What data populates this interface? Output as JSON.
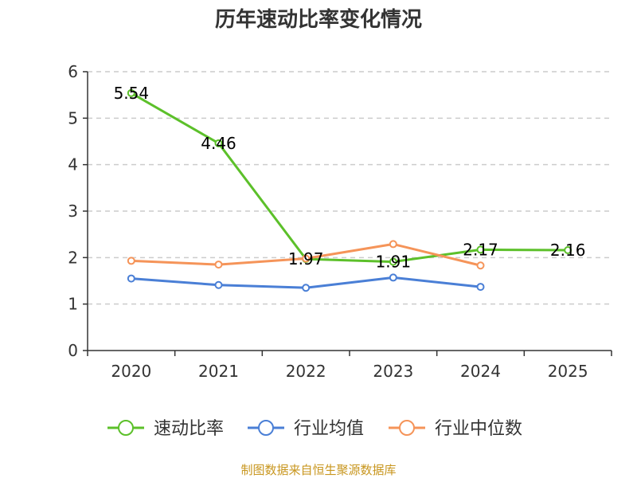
{
  "chart_data": {
    "type": "line",
    "title": "历年速动比率变化情况",
    "categories": [
      "2020",
      "2021",
      "2022",
      "2023",
      "2024",
      "2025"
    ],
    "ylim": [
      0,
      6
    ],
    "yticks": [
      0,
      1,
      2,
      3,
      4,
      5,
      6
    ],
    "grid": true,
    "legend_position": "bottom",
    "series": [
      {
        "name": "速动比率",
        "color": "#5cc02a",
        "values": [
          5.54,
          4.46,
          1.97,
          1.91,
          2.17,
          2.16
        ],
        "labels": [
          "5.54",
          "4.46",
          "1.97",
          "1.91",
          "2.17",
          "2.16"
        ]
      },
      {
        "name": "行业均值",
        "color": "#4a7fd6",
        "values": [
          1.55,
          1.41,
          1.35,
          1.57,
          1.37,
          null
        ]
      },
      {
        "name": "行业中位数",
        "color": "#f59459",
        "values": [
          1.93,
          1.85,
          1.98,
          2.29,
          1.83,
          null
        ]
      }
    ]
  },
  "source_text": "制图数据来自恒生聚源数据库"
}
